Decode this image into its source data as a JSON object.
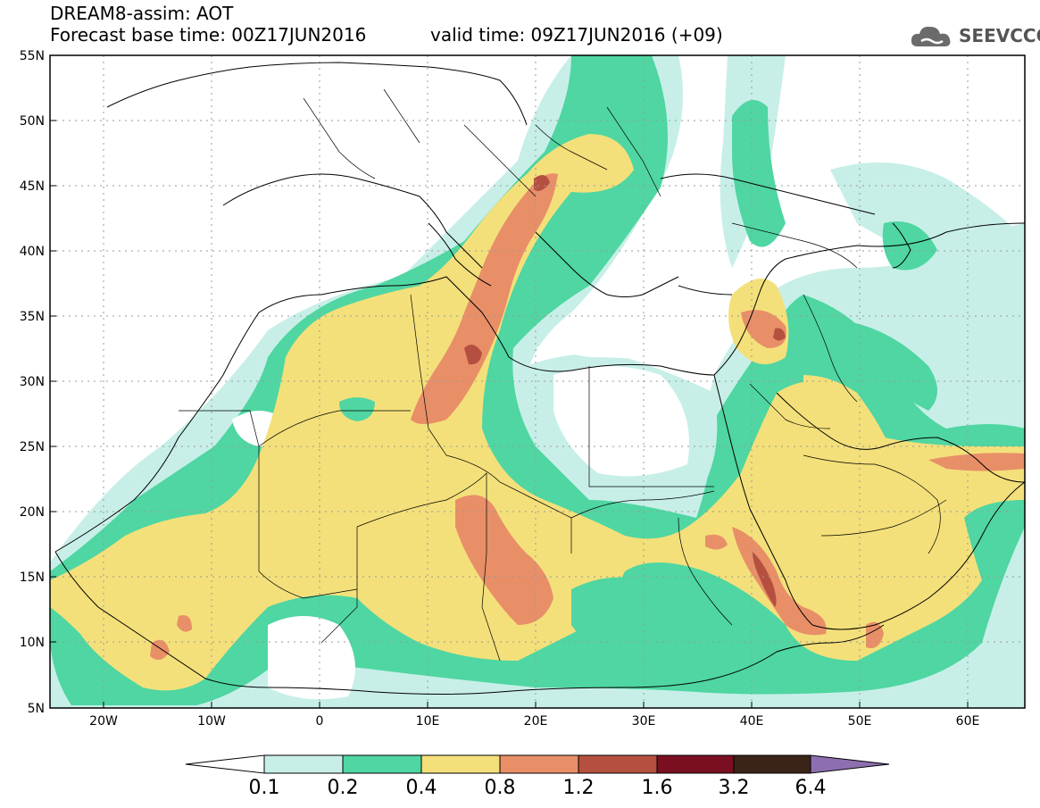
{
  "title": {
    "line1": "DREAM8-assim: AOT",
    "line2": "Forecast base time: 00Z17JUN2016",
    "valid": "valid time: 09Z17JUN2016 (+09)"
  },
  "logo": {
    "text": "SEEVCCC",
    "icon": "cloud-icon"
  },
  "axes": {
    "lat_labels": [
      "55N",
      "50N",
      "45N",
      "40N",
      "35N",
      "30N",
      "25N",
      "20N",
      "15N",
      "10N",
      "5N"
    ],
    "lon_labels": [
      "20W",
      "10W",
      "0",
      "10E",
      "20E",
      "30E",
      "40E",
      "50E",
      "60E"
    ],
    "lat_range": [
      5,
      55
    ],
    "lon_range": [
      -25,
      65
    ]
  },
  "colorbar": {
    "labels": [
      "0.1",
      "0.2",
      "0.4",
      "0.8",
      "1.2",
      "1.6",
      "3.2",
      "6.4"
    ],
    "colors": [
      "#ffffff",
      "#c7efe8",
      "#4fd6a2",
      "#f4e07a",
      "#e88f68",
      "#b55040",
      "#7a0f22",
      "#3a2418",
      "#8d6fb0"
    ]
  },
  "palette": {
    "c1": "#c7efe8",
    "c2": "#4fd6a2",
    "c3": "#f4e07a",
    "c4": "#e88f68",
    "c5": "#b55040",
    "c6": "#7a0f22"
  }
}
